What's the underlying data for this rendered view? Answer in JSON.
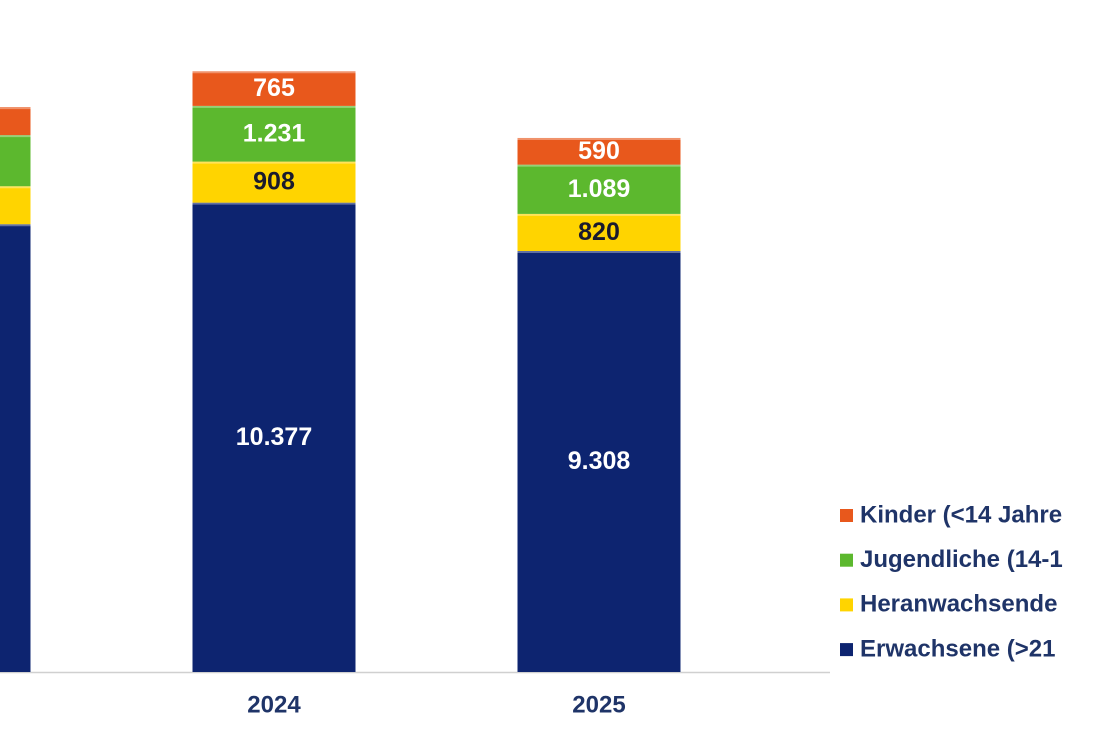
{
  "chart_data": {
    "type": "stacked_bar",
    "categories": [
      null,
      "2024",
      "2025"
    ],
    "series": [
      {
        "name": "Erwachsene (>21",
        "color": "#0d2470",
        "values": [
          9900,
          10377,
          9308
        ],
        "value_labels": [
          null,
          "10.377",
          "9.308"
        ],
        "label_color": "#ffffff"
      },
      {
        "name": "Heranwachsende",
        "color": "#ffd400",
        "values": [
          840,
          908,
          820
        ],
        "label_color": "#1a1a2e"
      },
      {
        "name": "Jugendliche (14-1",
        "color": "#5cb82e",
        "values": [
          1130,
          1231,
          1089
        ],
        "value_labels": [
          null,
          "1.231",
          "1.089"
        ],
        "label_color": "#ffffff"
      },
      {
        "name": "Kinder (<14 Jahre",
        "color": "#e8581c",
        "values": [
          620,
          765,
          590
        ],
        "label_color": "#ffffff"
      }
    ]
  }
}
